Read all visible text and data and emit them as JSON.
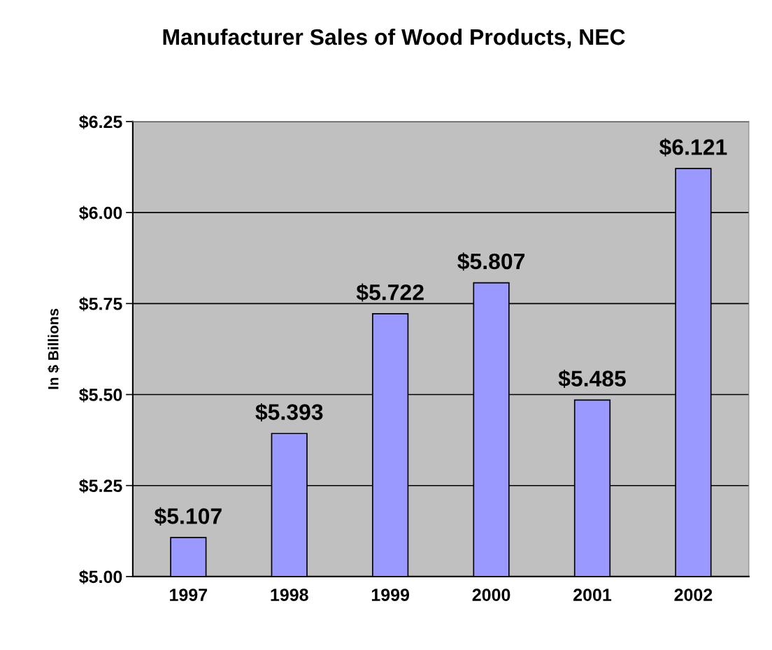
{
  "chart_data": {
    "type": "bar",
    "title": "Manufacturer Sales of Wood Products, NEC",
    "ylabel": "In $ Billions",
    "categories": [
      "1997",
      "1998",
      "1999",
      "2000",
      "2001",
      "2002"
    ],
    "values": [
      5.107,
      5.393,
      5.722,
      5.807,
      5.485,
      6.121
    ],
    "value_labels": [
      "$5.107",
      "$5.393",
      "$5.722",
      "$5.807",
      "$5.485",
      "$6.121"
    ],
    "color": "#9999ff",
    "ylim": [
      5.0,
      6.25
    ],
    "yticks": [
      {
        "value": 5.0,
        "label": "$5.00"
      },
      {
        "value": 5.25,
        "label": "$5.25"
      },
      {
        "value": 5.5,
        "label": "$5.50"
      },
      {
        "value": 5.75,
        "label": "$5.75"
      },
      {
        "value": 6.0,
        "label": "$6.00"
      },
      {
        "value": 6.25,
        "label": "$6.25"
      }
    ],
    "grid": "y"
  }
}
